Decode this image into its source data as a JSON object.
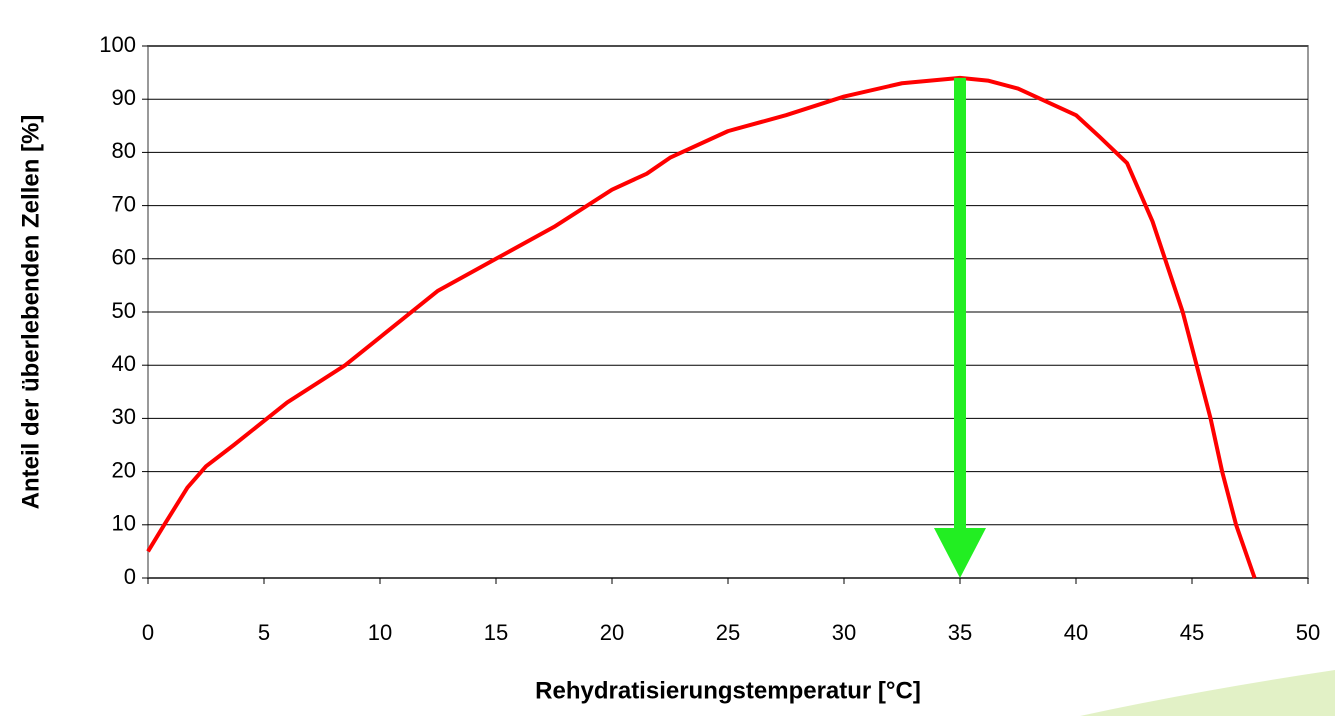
{
  "chart_data": {
    "type": "line",
    "x_label": "Rehydratisierungstemperatur [°C]",
    "y_label": "Anteil der überlebenden Zellen [%]",
    "xlim": [
      0,
      50
    ],
    "xticks": [
      0,
      5,
      10,
      15,
      20,
      25,
      30,
      35,
      40,
      45,
      50
    ],
    "ylim": [
      0,
      100
    ],
    "yticks": [
      0,
      10,
      20,
      30,
      40,
      50,
      60,
      70,
      80,
      90,
      100
    ],
    "grid": true,
    "series": [
      {
        "color": "#ff0000",
        "x": [
          0,
          0.7,
          1.7,
          2.5,
          3.7,
          6,
          8.5,
          12.5,
          15,
          17.5,
          20,
          21.5,
          22.5,
          25,
          27.5,
          30,
          32.5,
          35,
          36.2,
          37.5,
          39,
          40,
          41,
          42.2,
          43.3,
          44.6,
          45.2,
          45.8,
          46.3,
          46.9,
          47.7
        ],
        "values": [
          5,
          10,
          17,
          21,
          25,
          33,
          40,
          54,
          60,
          66,
          73,
          76,
          79,
          84,
          87,
          90.5,
          93,
          94,
          93.5,
          92,
          89,
          87,
          83,
          78,
          67,
          50,
          40,
          30,
          20,
          10,
          0
        ]
      }
    ],
    "arrow": {
      "x": 35,
      "y_start": 94,
      "y_end": 0,
      "color": "#22ee22"
    }
  }
}
